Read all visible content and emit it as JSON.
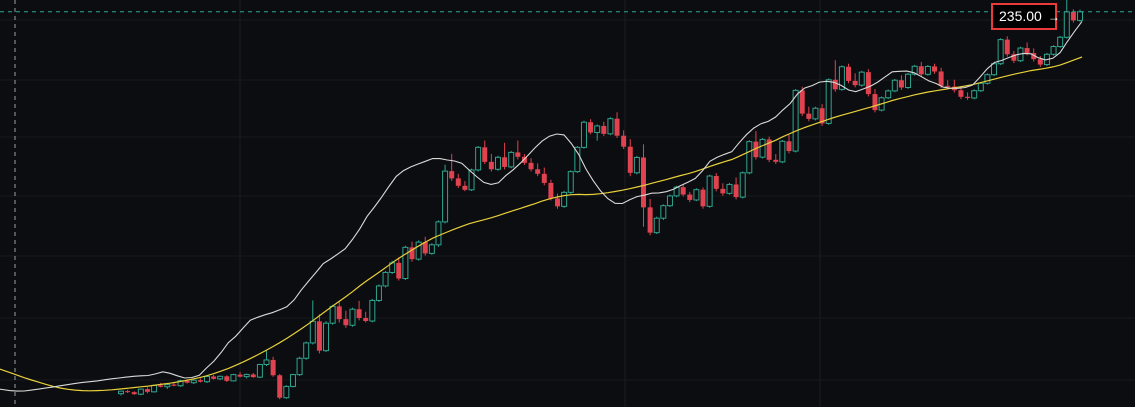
{
  "chart_data": {
    "type": "candlestick",
    "title": "",
    "xlabel": "",
    "ylabel": "",
    "ylim": [
      0,
      242
    ],
    "grid": true,
    "last_price": "235.00",
    "last_price_value": 235.0,
    "arrow": "→",
    "colors": {
      "background": "#0c0d10",
      "up": "#2fa58f",
      "down": "#e0424f",
      "ma_fast": "#d9d9d9",
      "ma_slow": "#e8d03a",
      "price_line": "#2fa58f",
      "label_border": "#ea3a3a"
    },
    "candles": [
      [
        8.5,
        10.2,
        7.4,
        10.0
      ],
      [
        10.0,
        10.8,
        8.9,
        9.4
      ],
      [
        9.4,
        9.9,
        7.8,
        8.2
      ],
      [
        8.2,
        11.6,
        7.6,
        11.2
      ],
      [
        11.2,
        12.3,
        8.7,
        9.6
      ],
      [
        9.6,
        13.9,
        9.1,
        13.4
      ],
      [
        13.4,
        14.9,
        12.2,
        12.6
      ],
      [
        12.6,
        14.4,
        11.3,
        13.9
      ],
      [
        13.9,
        15.4,
        12.9,
        13.2
      ],
      [
        13.2,
        16.8,
        12.5,
        16.2
      ],
      [
        16.2,
        17.1,
        14.5,
        15.0
      ],
      [
        15.0,
        16.9,
        14.2,
        16.5
      ],
      [
        16.5,
        17.6,
        15.1,
        15.6
      ],
      [
        15.6,
        19.2,
        14.8,
        18.7
      ],
      [
        18.7,
        19.6,
        16.8,
        17.3
      ],
      [
        17.3,
        19.3,
        16.5,
        18.8
      ],
      [
        18.8,
        19.4,
        15.4,
        16.1
      ],
      [
        16.1,
        20.3,
        15.7,
        19.8
      ],
      [
        19.8,
        21.3,
        18.1,
        18.6
      ],
      [
        18.6,
        20.4,
        17.5,
        19.9
      ],
      [
        19.9,
        20.8,
        17.9,
        18.3
      ],
      [
        18.3,
        26.2,
        17.8,
        25.8
      ],
      [
        25.8,
        34.0,
        24.9,
        28.5
      ],
      [
        28.5,
        30.4,
        18.5,
        19.4
      ],
      [
        19.4,
        20.2,
        5.2,
        6.1
      ],
      [
        6.1,
        13.5,
        5.4,
        12.8
      ],
      [
        12.8,
        20.3,
        12.2,
        19.8
      ],
      [
        19.8,
        30.4,
        19.0,
        29.5
      ],
      [
        29.5,
        39.4,
        28.6,
        38.6
      ],
      [
        38.6,
        63.8,
        37.7,
        51.4
      ],
      [
        51.4,
        55.6,
        32.4,
        34.0
      ],
      [
        34.0,
        51.5,
        33.2,
        50.3
      ],
      [
        50.3,
        61.2,
        49.4,
        60.3
      ],
      [
        60.3,
        63.4,
        50.7,
        52.7
      ],
      [
        52.7,
        57.7,
        47.6,
        49.1
      ],
      [
        49.1,
        59.5,
        48.2,
        58.6
      ],
      [
        58.6,
        63.6,
        52.0,
        53.4
      ],
      [
        53.4,
        57.1,
        50.7,
        51.6
      ],
      [
        51.6,
        64.7,
        50.8,
        63.8
      ],
      [
        63.8,
        73.3,
        62.9,
        72.4
      ],
      [
        72.4,
        81.3,
        71.5,
        80.4
      ],
      [
        80.4,
        87.3,
        79.5,
        86.1
      ],
      [
        86.1,
        89.4,
        75.6,
        76.8
      ],
      [
        76.8,
        96.3,
        75.9,
        95.3
      ],
      [
        95.3,
        98.7,
        86.8,
        88.3
      ],
      [
        88.3,
        99.4,
        87.4,
        98.4
      ],
      [
        98.4,
        101.6,
        90.4,
        91.7
      ],
      [
        91.7,
        97.7,
        90.9,
        96.8
      ],
      [
        96.8,
        111.3,
        95.5,
        110.4
      ],
      [
        110.4,
        144.3,
        109.5,
        140.5
      ],
      [
        140.5,
        150.7,
        134.7,
        136.2
      ],
      [
        136.2,
        138.9,
        130.5,
        131.8
      ],
      [
        131.8,
        134.6,
        128.6,
        129.4
      ],
      [
        129.4,
        142.0,
        128.7,
        141.2
      ],
      [
        141.2,
        155.4,
        140.3,
        154.6
      ],
      [
        154.6,
        158.6,
        144.7,
        146.0
      ],
      [
        146.0,
        150.7,
        140.3,
        141.6
      ],
      [
        141.6,
        149.6,
        140.7,
        148.7
      ],
      [
        148.7,
        157.3,
        141.5,
        143.0
      ],
      [
        143.0,
        152.5,
        142.2,
        151.6
      ],
      [
        151.6,
        158.6,
        147.4,
        149.0
      ],
      [
        149.0,
        150.6,
        144.2,
        145.4
      ],
      [
        145.4,
        148.2,
        140.3,
        141.6
      ],
      [
        141.6,
        145.1,
        137.5,
        138.9
      ],
      [
        138.9,
        142.6,
        132.1,
        133.5
      ],
      [
        133.5,
        135.4,
        123.1,
        124.3
      ],
      [
        124.3,
        127.2,
        118.2,
        119.6
      ],
      [
        119.6,
        128.8,
        118.7,
        127.9
      ],
      [
        127.9,
        141.0,
        127.0,
        140.2
      ],
      [
        140.2,
        155.4,
        139.4,
        154.6
      ],
      [
        154.6,
        170.4,
        153.8,
        169.5
      ],
      [
        169.5,
        171.3,
        162.3,
        163.4
      ],
      [
        163.4,
        168.2,
        158.6,
        167.3
      ],
      [
        167.3,
        169.8,
        161.3,
        162.6
      ],
      [
        162.6,
        172.5,
        161.8,
        171.6
      ],
      [
        171.6,
        175.4,
        160.2,
        161.5
      ],
      [
        161.5,
        164.7,
        153.6,
        155.0
      ],
      [
        155.0,
        159.5,
        137.5,
        139.5
      ],
      [
        139.5,
        149.5,
        138.6,
        148.6
      ],
      [
        148.6,
        156.4,
        107.5,
        119.0
      ],
      [
        119.0,
        124.0,
        102.5,
        104.0
      ],
      [
        104.0,
        113.5,
        103.2,
        112.6
      ],
      [
        112.6,
        120.8,
        111.5,
        120.0
      ],
      [
        120.0,
        126.6,
        119.2,
        125.8
      ],
      [
        125.8,
        131.8,
        125.0,
        131.0
      ],
      [
        131.0,
        132.6,
        125.5,
        126.6
      ],
      [
        126.6,
        128.2,
        122.1,
        123.4
      ],
      [
        123.4,
        130.3,
        122.7,
        129.5
      ],
      [
        129.5,
        130.8,
        118.2,
        119.6
      ],
      [
        119.6,
        138.4,
        118.8,
        137.6
      ],
      [
        137.6,
        139.3,
        128.5,
        130.0
      ],
      [
        130.0,
        133.3,
        125.9,
        127.3
      ],
      [
        127.3,
        133.5,
        126.5,
        132.6
      ],
      [
        132.6,
        136.8,
        123.7,
        125.1
      ],
      [
        125.1,
        140.3,
        124.3,
        139.5
      ],
      [
        139.5,
        158.8,
        138.6,
        158.0
      ],
      [
        158.0,
        164.2,
        147.4,
        148.8
      ],
      [
        148.8,
        160.1,
        148.0,
        159.3
      ],
      [
        159.3,
        161.0,
        145.8,
        147.2
      ],
      [
        147.2,
        150.6,
        144.7,
        146.0
      ],
      [
        146.0,
        159.0,
        145.2,
        158.2
      ],
      [
        158.2,
        162.2,
        151.0,
        152.4
      ],
      [
        152.4,
        189.2,
        151.6,
        188.4
      ],
      [
        188.4,
        190.6,
        173.2,
        174.6
      ],
      [
        174.6,
        178.7,
        170.1,
        171.5
      ],
      [
        171.5,
        178.7,
        170.6,
        177.8
      ],
      [
        177.8,
        180.2,
        167.4,
        168.8
      ],
      [
        168.8,
        195.5,
        168.0,
        194.7
      ],
      [
        194.7,
        206.3,
        187.6,
        189.0
      ],
      [
        189.0,
        203.2,
        188.2,
        202.4
      ],
      [
        202.4,
        204.2,
        192.6,
        194.0
      ],
      [
        194.0,
        198.5,
        190.2,
        191.5
      ],
      [
        191.5,
        200.0,
        190.6,
        199.2
      ],
      [
        199.2,
        201.0,
        184.8,
        186.2
      ],
      [
        186.2,
        189.2,
        175.3,
        176.7
      ],
      [
        176.7,
        184.8,
        175.9,
        184.0
      ],
      [
        184.0,
        188.9,
        183.2,
        188.1
      ],
      [
        188.1,
        195.2,
        187.3,
        194.4
      ],
      [
        194.4,
        197.3,
        188.7,
        190.1
      ],
      [
        190.1,
        198.8,
        189.3,
        198.0
      ],
      [
        198.0,
        203.5,
        197.2,
        202.7
      ],
      [
        202.7,
        205.3,
        196.5,
        197.9
      ],
      [
        197.9,
        203.4,
        197.1,
        202.6
      ],
      [
        202.6,
        204.2,
        198.2,
        199.6
      ],
      [
        199.6,
        201.8,
        189.7,
        191.1
      ],
      [
        191.1,
        194.4,
        189.2,
        190.6
      ],
      [
        190.6,
        194.7,
        187.1,
        188.5
      ],
      [
        188.5,
        191.0,
        183.2,
        184.6
      ],
      [
        184.6,
        187.2,
        182.8,
        183.9
      ],
      [
        183.9,
        189.0,
        183.1,
        188.2
      ],
      [
        188.2,
        193.4,
        187.4,
        192.6
      ],
      [
        192.6,
        198.5,
        191.8,
        197.7
      ],
      [
        197.7,
        205.0,
        196.9,
        204.2
      ],
      [
        204.2,
        219.3,
        203.4,
        218.5
      ],
      [
        218.5,
        220.5,
        208.4,
        209.8
      ],
      [
        209.8,
        211.8,
        204.6,
        206.0
      ],
      [
        206.0,
        214.3,
        205.2,
        213.5
      ],
      [
        213.5,
        216.8,
        209.2,
        210.5
      ],
      [
        210.5,
        213.3,
        205.5,
        206.9
      ],
      [
        206.9,
        208.8,
        202.3,
        203.7
      ],
      [
        203.7,
        210.6,
        202.9,
        209.8
      ],
      [
        209.8,
        215.2,
        209.0,
        214.4
      ],
      [
        214.4,
        220.7,
        213.6,
        219.9
      ],
      [
        219.9,
        242.0,
        219.1,
        235.0
      ],
      [
        235.0,
        236.5,
        228.6,
        229.9
      ],
      [
        229.9,
        236.3,
        229.1,
        235.0
      ]
    ],
    "ma_fast": [
      11.5,
      11.0,
      10.3,
      10.0,
      10.1,
      10.6,
      11.2,
      11.9,
      12.5,
      13.2,
      13.9,
      14.6,
      15.2,
      15.6,
      16.1,
      16.7,
      17.3,
      17.8,
      18.3,
      18.8,
      19.1,
      19.3,
      20.2,
      21.5,
      20.6,
      19.1,
      17.8,
      18.1,
      19.4,
      23.8,
      27.8,
      33.0,
      38.8,
      42.5,
      47.4,
      52.1,
      53.8,
      55.3,
      56.5,
      58.2,
      60.0,
      64.1,
      70.1,
      75.3,
      80.4,
      85.7,
      88.4,
      91.4,
      94.5,
      100.0,
      106.3,
      113.7,
      119.2,
      125.1,
      131.4,
      137.4,
      140.8,
      143.0,
      144.7,
      146.3,
      148.0,
      147.9,
      147.1,
      146.5,
      145.1,
      141.1,
      137.3,
      133.8,
      132.6,
      133.6,
      137.8,
      141.2,
      145.2,
      149.6,
      154.3,
      158.3,
      161.2,
      162.5,
      162.0,
      156.9,
      150.5,
      141.8,
      134.8,
      128.8,
      124.2,
      121.4,
      121.3,
      123.5,
      125.4,
      126.2,
      127.4,
      127.6,
      128.3,
      129.7,
      132.0,
      134.0,
      136.2,
      140.8,
      146.3,
      148.7,
      150.5,
      152.0,
      157.3,
      162.1,
      166.0,
      168.6,
      170.0,
      172.6,
      176.8,
      180.6,
      186.3,
      189.8,
      191.2,
      193.3,
      193.8,
      193.2,
      191.3,
      188.6,
      187.6,
      189.2,
      190.9,
      193.3,
      196.4,
      199.4,
      199.7,
      199.8,
      198.8,
      196.5,
      194.0,
      192.5,
      190.3,
      189.7,
      189.6,
      190.1,
      191.6,
      196.2,
      201.2,
      204.9,
      206.2,
      207.9,
      209.5,
      210.3,
      210.1,
      207.8,
      206.5,
      207.4,
      210.8,
      217.4,
      223.5,
      229.3
    ],
    "ma_slow": [
      24.0,
      22.6,
      21.1,
      19.5,
      18.0,
      16.6,
      15.3,
      14.0,
      12.8,
      11.8,
      11.1,
      10.6,
      10.3,
      10.2,
      10.3,
      10.5,
      10.8,
      11.2,
      11.6,
      12.1,
      12.6,
      13.0,
      13.6,
      14.2,
      14.7,
      15.4,
      16.2,
      17.1,
      18.0,
      19.1,
      20.4,
      21.9,
      23.5,
      25.3,
      27.2,
      29.3,
      31.5,
      33.8,
      36.2,
      38.7,
      41.3,
      44.1,
      47.0,
      50.0,
      53.2,
      56.4,
      59.6,
      62.7,
      65.8,
      69.0,
      72.4,
      75.6,
      78.6,
      81.6,
      84.7,
      87.8,
      90.6,
      93.3,
      95.9,
      98.4,
      100.7,
      102.6,
      104.4,
      106.1,
      107.8,
      109.3,
      110.5,
      111.6,
      112.8,
      114.1,
      115.6,
      117.0,
      118.4,
      119.8,
      121.2,
      122.7,
      124.0,
      125.1,
      126.0,
      126.5,
      126.7,
      126.6,
      126.7,
      127.1,
      127.7,
      128.4,
      129.2,
      130.1,
      131.1,
      132.1,
      133.3,
      134.4,
      135.5,
      136.7,
      137.9,
      139.0,
      140.2,
      141.7,
      143.3,
      144.7,
      146.1,
      147.4,
      149.3,
      151.3,
      153.3,
      155.2,
      157.0,
      158.8,
      160.9,
      162.8,
      164.7,
      166.4,
      167.9,
      169.4,
      170.9,
      172.3,
      173.6,
      174.8,
      176.0,
      177.2,
      178.4,
      179.7,
      181.0,
      182.4,
      183.5,
      184.6,
      185.7,
      186.6,
      187.5,
      188.2,
      188.9,
      189.6,
      190.3,
      191.0,
      191.8,
      192.9,
      194.0,
      195.1,
      196.2,
      197.3,
      198.3,
      199.2,
      200.1,
      200.8,
      201.5,
      202.3,
      203.4,
      205.0,
      206.6,
      208.2
    ]
  }
}
